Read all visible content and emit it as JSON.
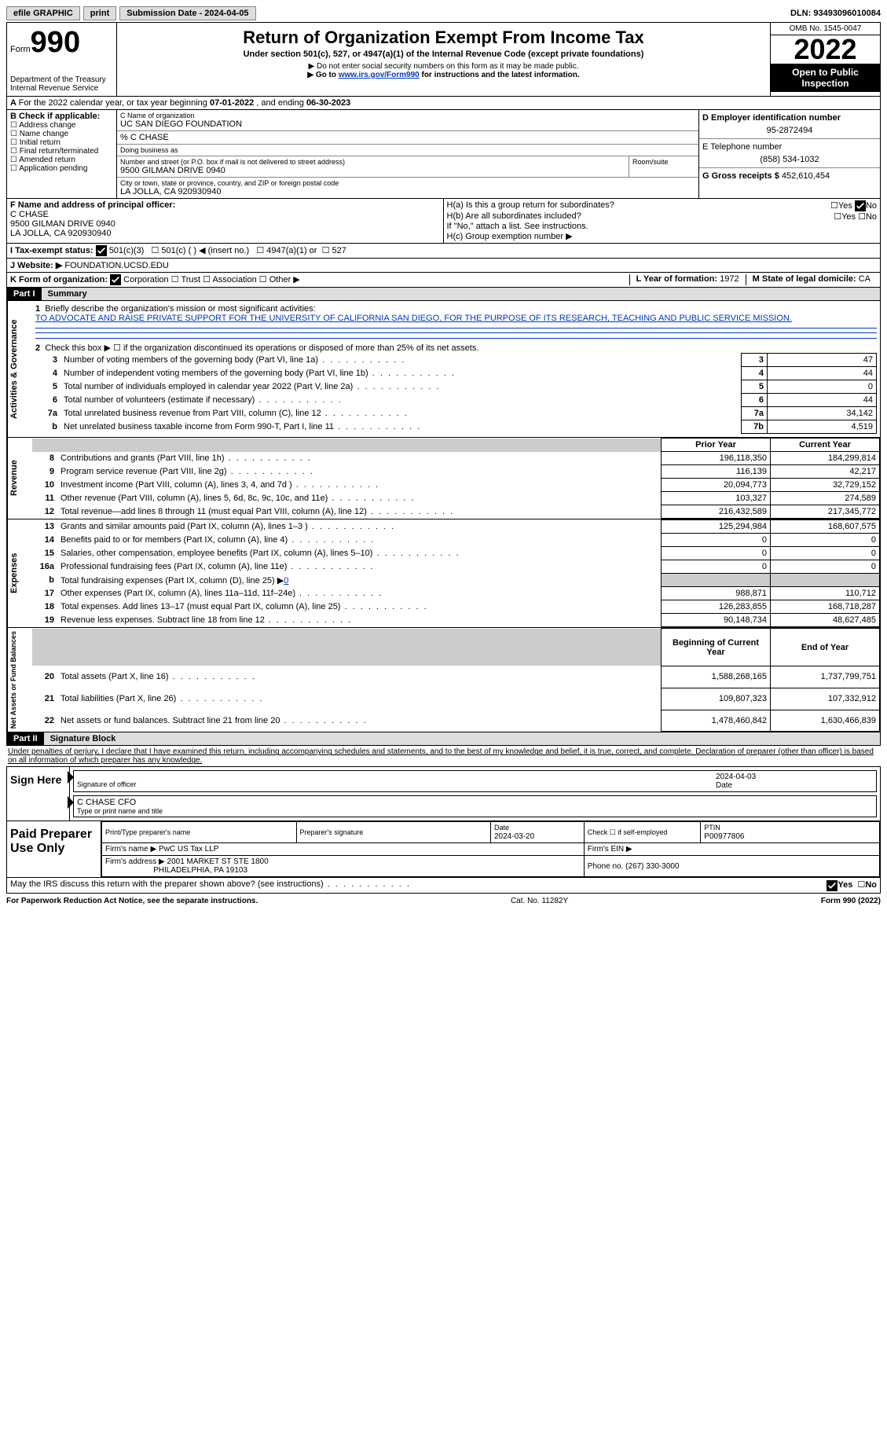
{
  "topbar": {
    "efile": "efile GRAPHIC",
    "print": "print",
    "submission_label": "Submission Date - ",
    "submission_date": "2024-04-05",
    "dln_label": "DLN: ",
    "dln": "93493096010084"
  },
  "header": {
    "form_prefix": "Form",
    "form_number": "990",
    "title": "Return of Organization Exempt From Income Tax",
    "subtitle": "Under section 501(c), 527, or 4947(a)(1) of the Internal Revenue Code (except private foundations)",
    "note1": "▶ Do not enter social security numbers on this form as it may be made public.",
    "note2_prefix": "▶ Go to ",
    "note2_link": "www.irs.gov/Form990",
    "note2_suffix": " for instructions and the latest information.",
    "dept": "Department of the Treasury",
    "irs": "Internal Revenue Service",
    "omb": "OMB No. 1545-0047",
    "year": "2022",
    "open": "Open to Public Inspection"
  },
  "period": {
    "text": "For the 2022 calendar year, or tax year beginning ",
    "begin": "07-01-2022",
    "mid": " , and ending ",
    "end": "06-30-2023"
  },
  "boxB": {
    "label": "B Check if applicable:",
    "items": [
      "Address change",
      "Name change",
      "Initial return",
      "Final return/terminated",
      "Amended return",
      "Application pending"
    ]
  },
  "boxC": {
    "name_label": "C Name of organization",
    "name": "UC SAN DIEGO FOUNDATION",
    "co": "% C CHASE",
    "dba_label": "Doing business as",
    "street_label": "Number and street (or P.O. box if mail is not delivered to street address)",
    "room_label": "Room/suite",
    "street": "9500 GILMAN DRIVE 0940",
    "city_label": "City or town, state or province, country, and ZIP or foreign postal code",
    "city": "LA JOLLA, CA  920930940"
  },
  "boxD": {
    "label": "D Employer identification number",
    "value": "95-2872494"
  },
  "boxE": {
    "label": "E Telephone number",
    "value": "(858) 534-1032"
  },
  "boxG": {
    "label": "G Gross receipts $ ",
    "value": "452,610,454"
  },
  "boxF": {
    "label": "F Name and address of principal officer:",
    "name": "C CHASE",
    "street": "9500 GILMAN DRIVE 0940",
    "city": "LA JOLLA, CA  920930940"
  },
  "boxH": {
    "ha": "H(a)  Is this a group return for subordinates?",
    "hb": "H(b)  Are all subordinates included?",
    "hb_note": "If \"No,\" attach a list. See instructions.",
    "hc": "H(c)  Group exemption number ▶"
  },
  "boxI": {
    "label": "I  Tax-exempt status:",
    "opt1": "501(c)(3)",
    "opt2": "501(c) (  ) ◀ (insert no.)",
    "opt3": "4947(a)(1) or",
    "opt4": "527"
  },
  "boxJ": {
    "label": "J  Website: ▶",
    "value": "FOUNDATION.UCSD.EDU"
  },
  "boxK": {
    "label": "K Form of organization:",
    "opts": [
      "Corporation",
      "Trust",
      "Association",
      "Other ▶"
    ]
  },
  "boxL": {
    "label": "L Year of formation: ",
    "value": "1972"
  },
  "boxM": {
    "label": "M State of legal domicile: ",
    "value": "CA"
  },
  "part1": {
    "label": "Part I",
    "title": "Summary"
  },
  "summary": {
    "line1_label": "Briefly describe the organization's mission or most significant activities:",
    "line1_text": "TO ADVOCATE AND RAISE PRIVATE SUPPORT FOR THE UNIVERSITY OF CALIFORNIA SAN DIEGO, FOR THE PURPOSE OF ITS RESEARCH, TEACHING AND PUBLIC SERVICE MISSION.",
    "line2": "Check this box ▶ ☐ if the organization discontinued its operations or disposed of more than 25% of its net assets.",
    "lines_ag": [
      {
        "n": "3",
        "label": "Number of voting members of the governing body (Part VI, line 1a)",
        "box": "3",
        "val": "47"
      },
      {
        "n": "4",
        "label": "Number of independent voting members of the governing body (Part VI, line 1b)",
        "box": "4",
        "val": "44"
      },
      {
        "n": "5",
        "label": "Total number of individuals employed in calendar year 2022 (Part V, line 2a)",
        "box": "5",
        "val": "0"
      },
      {
        "n": "6",
        "label": "Total number of volunteers (estimate if necessary)",
        "box": "6",
        "val": "44"
      },
      {
        "n": "7a",
        "label": "Total unrelated business revenue from Part VIII, column (C), line 12",
        "box": "7a",
        "val": "34,142"
      },
      {
        "n": "b",
        "label": "Net unrelated business taxable income from Form 990-T, Part I, line 11",
        "box": "7b",
        "val": "4,519"
      }
    ],
    "col_prior": "Prior Year",
    "col_current": "Current Year",
    "revenue": [
      {
        "n": "8",
        "label": "Contributions and grants (Part VIII, line 1h)",
        "p": "196,118,350",
        "c": "184,299,814"
      },
      {
        "n": "9",
        "label": "Program service revenue (Part VIII, line 2g)",
        "p": "116,139",
        "c": "42,217"
      },
      {
        "n": "10",
        "label": "Investment income (Part VIII, column (A), lines 3, 4, and 7d )",
        "p": "20,094,773",
        "c": "32,729,152"
      },
      {
        "n": "11",
        "label": "Other revenue (Part VIII, column (A), lines 5, 6d, 8c, 9c, 10c, and 11e)",
        "p": "103,327",
        "c": "274,589"
      },
      {
        "n": "12",
        "label": "Total revenue—add lines 8 through 11 (must equal Part VIII, column (A), line 12)",
        "p": "216,432,589",
        "c": "217,345,772"
      }
    ],
    "expenses": [
      {
        "n": "13",
        "label": "Grants and similar amounts paid (Part IX, column (A), lines 1–3 )",
        "p": "125,294,984",
        "c": "168,607,575"
      },
      {
        "n": "14",
        "label": "Benefits paid to or for members (Part IX, column (A), line 4)",
        "p": "0",
        "c": "0"
      },
      {
        "n": "15",
        "label": "Salaries, other compensation, employee benefits (Part IX, column (A), lines 5–10)",
        "p": "0",
        "c": "0"
      },
      {
        "n": "16a",
        "label": "Professional fundraising fees (Part IX, column (A), line 11e)",
        "p": "0",
        "c": "0"
      },
      {
        "n": "b",
        "label": "Total fundraising expenses (Part IX, column (D), line 25) ▶",
        "fundraising": "0",
        "shade": true
      },
      {
        "n": "17",
        "label": "Other expenses (Part IX, column (A), lines 11a–11d, 11f–24e)",
        "p": "988,871",
        "c": "110,712"
      },
      {
        "n": "18",
        "label": "Total expenses. Add lines 13–17 (must equal Part IX, column (A), line 25)",
        "p": "126,283,855",
        "c": "168,718,287"
      },
      {
        "n": "19",
        "label": "Revenue less expenses. Subtract line 18 from line 12",
        "p": "90,148,734",
        "c": "48,627,485"
      }
    ],
    "col_begin": "Beginning of Current Year",
    "col_end": "End of Year",
    "netassets": [
      {
        "n": "20",
        "label": "Total assets (Part X, line 16)",
        "p": "1,588,268,165",
        "c": "1,737,799,751"
      },
      {
        "n": "21",
        "label": "Total liabilities (Part X, line 26)",
        "p": "109,807,323",
        "c": "107,332,912"
      },
      {
        "n": "22",
        "label": "Net assets or fund balances. Subtract line 21 from line 20",
        "p": "1,478,460,842",
        "c": "1,630,466,839"
      }
    ],
    "vlabels": {
      "ag": "Activities & Governance",
      "rev": "Revenue",
      "exp": "Expenses",
      "na": "Net Assets or Fund Balances"
    }
  },
  "part2": {
    "label": "Part II",
    "title": "Signature Block",
    "penalty": "Under penalties of perjury, I declare that I have examined this return, including accompanying schedules and statements, and to the best of my knowledge and belief, it is true, correct, and complete. Declaration of preparer (other than officer) is based on all information of which preparer has any knowledge."
  },
  "sign": {
    "label": "Sign Here",
    "sig_label": "Signature of officer",
    "date_label": "Date",
    "date": "2024-04-03",
    "name_label": "Type or print name and title",
    "name": "C CHASE CFO"
  },
  "prep": {
    "label": "Paid Preparer Use Only",
    "name_label": "Print/Type preparer's name",
    "sig_label": "Preparer's signature",
    "date_label": "Date",
    "date": "2024-03-20",
    "check_label": "Check ☐ if self-employed",
    "ptin_label": "PTIN",
    "ptin": "P00977806",
    "firm_name_label": "Firm's name    ▶ ",
    "firm_name": "PwC US Tax LLP",
    "firm_ein_label": "Firm's EIN ▶",
    "firm_addr_label": "Firm's address ▶ ",
    "firm_addr1": "2001 MARKET ST STE 1800",
    "firm_addr2": "PHILADELPHIA, PA  19103",
    "phone_label": "Phone no. ",
    "phone": "(267) 330-3000"
  },
  "discuss": {
    "text": "May the IRS discuss this return with the preparer shown above? (see instructions)",
    "yes": "Yes",
    "no": "No"
  },
  "footer": {
    "paperwork": "For Paperwork Reduction Act Notice, see the separate instructions.",
    "cat": "Cat. No. 11282Y",
    "form": "Form 990 (2022)"
  },
  "yesno": {
    "yes": "Yes",
    "no": "No"
  }
}
